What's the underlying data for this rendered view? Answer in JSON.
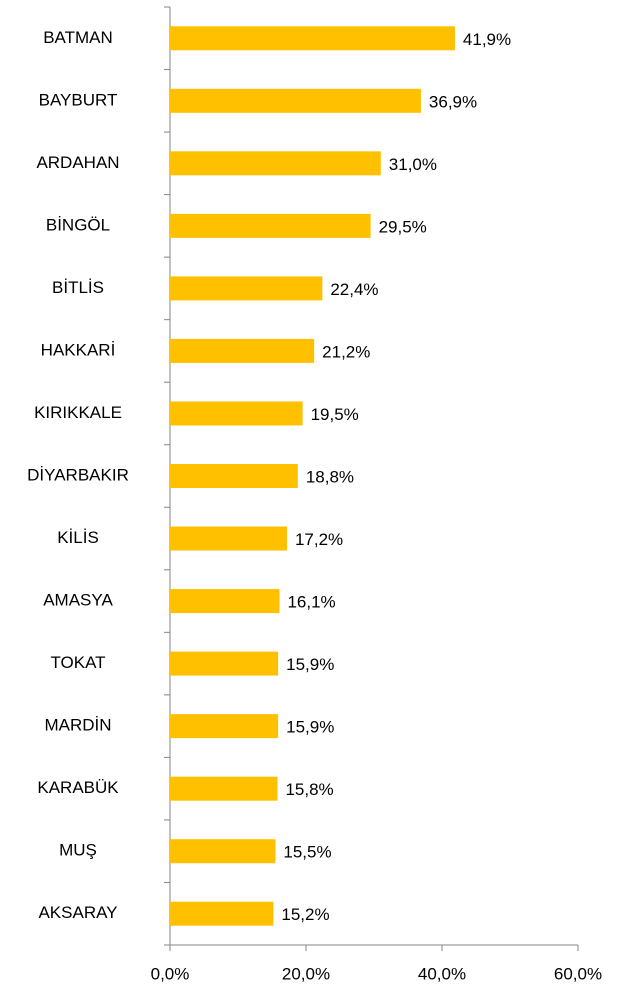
{
  "chart_data": {
    "type": "bar",
    "orientation": "horizontal",
    "categories": [
      "BATMAN",
      "BAYBURT",
      "ARDAHAN",
      "BİNGÖL",
      "BİTLİS",
      "HAKKARİ",
      "KIRIKKALE",
      "DİYARBAKIR",
      "KİLİS",
      "AMASYA",
      "TOKAT",
      "MARDİN",
      "KARABÜK",
      "MUŞ",
      "AKSARAY"
    ],
    "values": [
      41.9,
      36.9,
      31.0,
      29.5,
      22.4,
      21.2,
      19.5,
      18.8,
      17.2,
      16.1,
      15.9,
      15.9,
      15.8,
      15.5,
      15.2
    ],
    "value_labels": [
      "41,9%",
      "36,9%",
      "31,0%",
      "29,5%",
      "22,4%",
      "21,2%",
      "19,5%",
      "18,8%",
      "17,2%",
      "16,1%",
      "15,9%",
      "15,9%",
      "15,8%",
      "15,5%",
      "15,2%"
    ],
    "color": "#ffc000",
    "xlim": [
      0,
      60
    ],
    "xticks": [
      {
        "value": 0,
        "label": "0,0%"
      },
      {
        "value": 20,
        "label": "20,0%"
      },
      {
        "value": 40,
        "label": "40,0%"
      },
      {
        "value": 60,
        "label": "60,0%"
      }
    ]
  }
}
